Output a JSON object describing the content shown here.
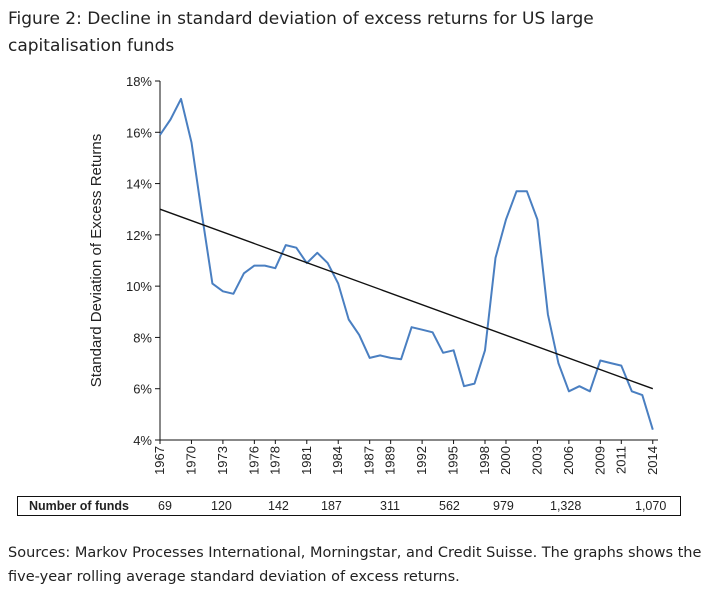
{
  "figure": {
    "title": "Figure 2:  Decline in standard deviation of excess returns for US large capitalisation funds",
    "sources": "Sources:  Markov Processes International, Morningstar, and Credit Suisse. The graphs shows the five-year rolling average standard deviation of excess returns."
  },
  "chart_data": {
    "type": "line",
    "title": "",
    "ylabel": "Standard Deviation of Excess Returns",
    "xlabel": "",
    "ylim": [
      4,
      18
    ],
    "y_ticks": [
      4,
      6,
      8,
      10,
      12,
      14,
      16,
      18
    ],
    "y_tick_labels": [
      "4%",
      "6%",
      "8%",
      "10%",
      "12%",
      "14%",
      "16%",
      "18%"
    ],
    "x_range": [
      1967,
      2014.5
    ],
    "x_ticks": [
      1967,
      1970,
      1973,
      1976,
      1978,
      1981,
      1984,
      1987,
      1989,
      1992,
      1995,
      1998,
      2000,
      2003,
      2006,
      2009,
      2011,
      2014
    ],
    "x_tick_labels": [
      "1967",
      "1970",
      "1973",
      "1976",
      "1978",
      "1981",
      "1984",
      "1987",
      "1989",
      "1992",
      "1995",
      "1998",
      "2000",
      "2003",
      "2006",
      "2009",
      "2011",
      "2014"
    ],
    "series": [
      {
        "name": "Standard deviation of excess returns",
        "color": "#4a7fc1",
        "x": [
          1967,
          1968,
          1969,
          1970,
          1971,
          1972,
          1973,
          1974,
          1975,
          1976,
          1977,
          1978,
          1979,
          1980,
          1981,
          1982,
          1983,
          1984,
          1985,
          1986,
          1987,
          1988,
          1989,
          1990,
          1991,
          1992,
          1993,
          1994,
          1995,
          1996,
          1997,
          1998,
          1999,
          2000,
          2001,
          2002,
          2003,
          2004,
          2005,
          2006,
          2007,
          2008,
          2009,
          2010,
          2011,
          2012,
          2013,
          2014
        ],
        "values": [
          15.9,
          16.5,
          17.3,
          15.6,
          12.8,
          10.1,
          9.8,
          9.7,
          10.5,
          10.8,
          10.8,
          10.7,
          11.6,
          11.5,
          10.9,
          11.3,
          10.9,
          10.1,
          8.7,
          8.1,
          7.2,
          7.3,
          7.2,
          7.15,
          8.4,
          8.3,
          8.2,
          7.4,
          7.5,
          6.1,
          6.2,
          7.5,
          11.1,
          12.6,
          13.7,
          13.7,
          12.6,
          8.9,
          7.0,
          5.9,
          6.1,
          5.9,
          7.1,
          7.0,
          6.9,
          5.9,
          5.75,
          4.4
        ]
      },
      {
        "name": "Linear trend",
        "color": "#111111",
        "x": [
          1967,
          2014
        ],
        "values": [
          13.0,
          6.0
        ]
      }
    ],
    "table": {
      "label": "Number of funds",
      "values": [
        "69",
        "120",
        "142",
        "187",
        "311",
        "562",
        "979",
        "1,328",
        "1,070"
      ]
    }
  }
}
